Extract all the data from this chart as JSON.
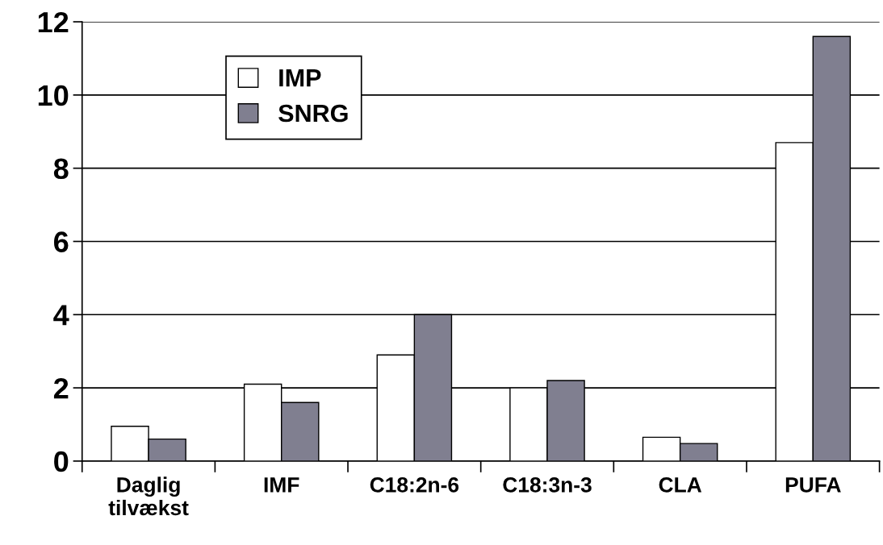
{
  "chart_data": {
    "type": "bar",
    "categories": [
      "Daglig\ntilvækst",
      "IMF",
      "C18:2n-6",
      "C18:3n-3",
      "CLA",
      "PUFA"
    ],
    "series": [
      {
        "name": "IMP",
        "color": "#ffffff",
        "values": [
          0.95,
          2.1,
          2.9,
          2.0,
          0.65,
          8.7
        ]
      },
      {
        "name": "SNRG",
        "color": "#807f90",
        "values": [
          0.6,
          1.6,
          4.0,
          2.2,
          0.48,
          11.6
        ]
      }
    ],
    "ylim": [
      0,
      12
    ],
    "yticks": [
      0,
      2,
      4,
      6,
      8,
      10,
      12
    ],
    "grid": "y",
    "legend": "top left"
  }
}
